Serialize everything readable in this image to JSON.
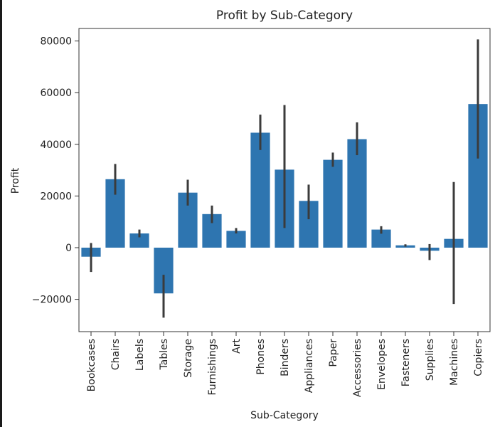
{
  "chart_data": {
    "type": "bar",
    "title": "Profit by Sub-Category",
    "xlabel": "Sub-Category",
    "ylabel": "Profit",
    "categories": [
      "Bookcases",
      "Chairs",
      "Labels",
      "Tables",
      "Storage",
      "Furnishings",
      "Art",
      "Phones",
      "Binders",
      "Appliances",
      "Paper",
      "Accessories",
      "Envelopes",
      "Fasteners",
      "Supplies",
      "Machines",
      "Copiers"
    ],
    "values": [
      -3500,
      26500,
      5500,
      -17700,
      21300,
      13000,
      6500,
      44500,
      30200,
      18100,
      34000,
      42000,
      7000,
      900,
      -1200,
      3400,
      55600
    ],
    "error_low": [
      -9400,
      20500,
      4000,
      -27100,
      16300,
      9500,
      5500,
      37800,
      7600,
      11000,
      31300,
      35800,
      5400,
      400,
      -4800,
      -21800,
      34500
    ],
    "error_high": [
      1800,
      32400,
      7000,
      -10500,
      26300,
      16300,
      7600,
      51500,
      55200,
      24400,
      36800,
      48500,
      8300,
      1300,
      1400,
      25400,
      80600
    ],
    "ylim": [
      -32000,
      86000
    ],
    "yticks": [
      -20000,
      0,
      20000,
      40000,
      60000,
      80000
    ],
    "ytick_labels": [
      "−20000",
      "0",
      "20000",
      "40000",
      "60000",
      "80000"
    ],
    "grid": false,
    "bar_color": "#2e75b0",
    "error_color": "#3b3b3b"
  }
}
